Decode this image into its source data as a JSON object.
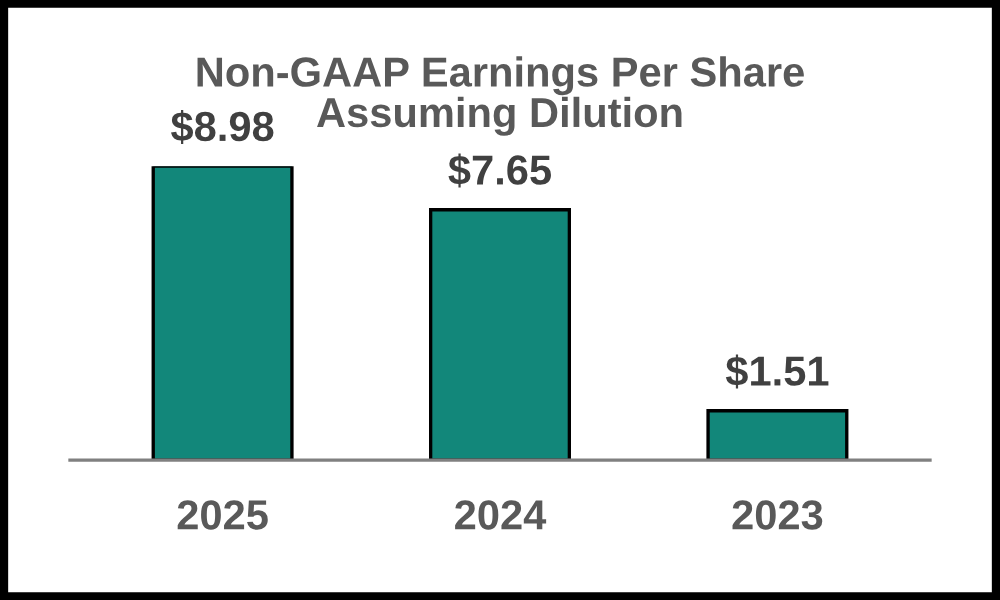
{
  "chart_data": {
    "type": "bar",
    "title": "Non-GAAP Earnings Per Share\nAssuming Dilution",
    "categories": [
      "2025",
      "2024",
      "2023"
    ],
    "values": [
      8.98,
      7.65,
      1.51
    ],
    "value_labels": [
      "$8.98",
      "$7.65",
      "$1.51"
    ],
    "color": "#12877a",
    "grid": false,
    "legend": false
  }
}
